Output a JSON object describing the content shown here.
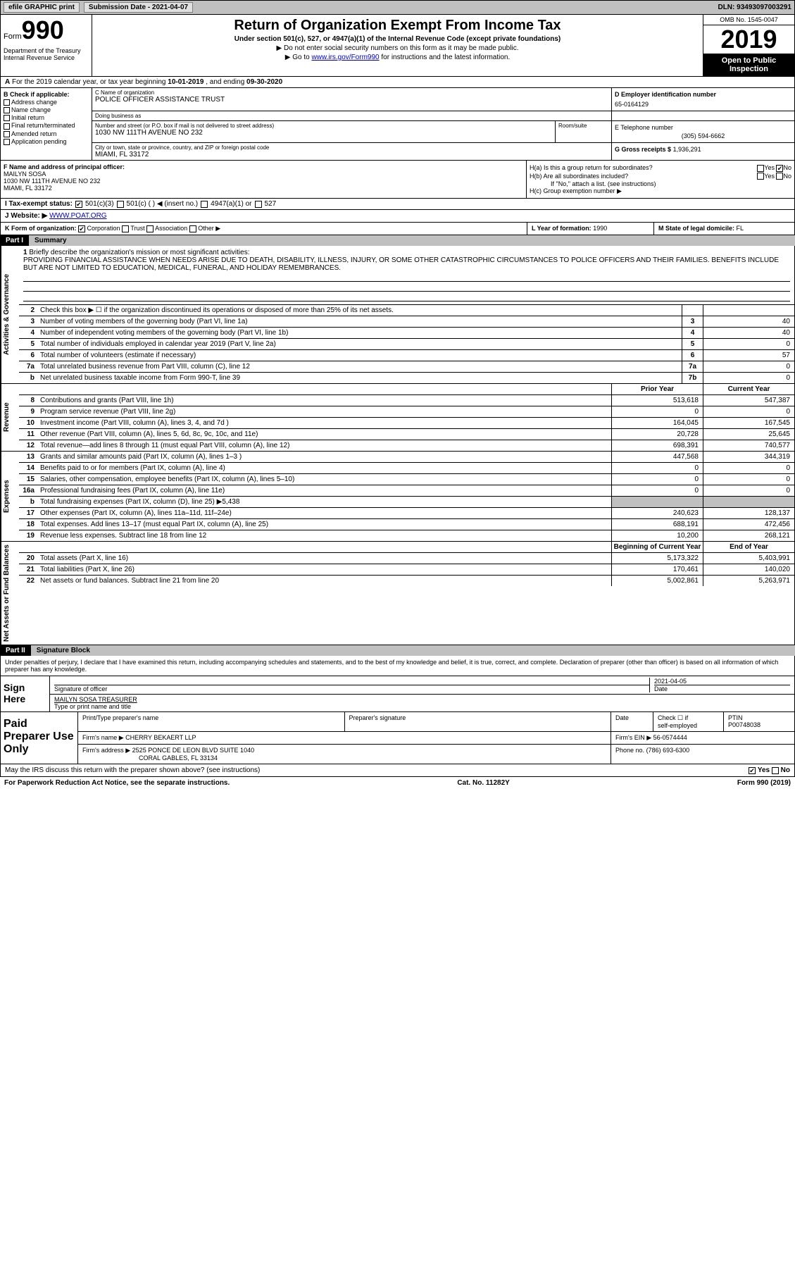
{
  "topbar": {
    "efile": "efile GRAPHIC print",
    "sub_label": "Submission Date - 2021-04-07",
    "dln": "DLN: 93493097003291"
  },
  "header": {
    "form_word": "Form",
    "form_num": "990",
    "dept": "Department of the Treasury\nInternal Revenue Service",
    "title": "Return of Organization Exempt From Income Tax",
    "subtitle": "Under section 501(c), 527, or 4947(a)(1) of the Internal Revenue Code (except private foundations)",
    "note1": "▶ Do not enter social security numbers on this form as it may be made public.",
    "note2_pre": "▶ Go to ",
    "note2_link": "www.irs.gov/Form990",
    "note2_post": " for instructions and the latest information.",
    "omb": "OMB No. 1545-0047",
    "year": "2019",
    "inspect": "Open to Public Inspection"
  },
  "line_a": {
    "prefix": "A",
    "text": "For the 2019 calendar year, or tax year beginning ",
    "begin": "10-01-2019",
    "mid": " , and ending ",
    "end": "09-30-2020"
  },
  "col_b": {
    "label": "B Check if applicable:",
    "items": [
      "Address change",
      "Name change",
      "Initial return",
      "Final return/terminated",
      "Amended return",
      "Application pending"
    ]
  },
  "block_c": {
    "name_lbl": "C Name of organization",
    "name": "POLICE OFFICER ASSISTANCE TRUST",
    "dba_lbl": "Doing business as",
    "dba": "",
    "addr_lbl": "Number and street (or P.O. box if mail is not delivered to street address)",
    "room_lbl": "Room/suite",
    "addr": "1030 NW 111TH AVENUE NO 232",
    "city_lbl": "City or town, state or province, country, and ZIP or foreign postal code",
    "city": "MIAMI, FL  33172"
  },
  "block_d": {
    "ein_lbl": "D Employer identification number",
    "ein": "65-0164129",
    "phone_lbl": "E Telephone number",
    "phone": "(305) 594-6662",
    "gross_lbl": "G Gross receipts $",
    "gross": "1,936,291"
  },
  "block_f": {
    "lbl": "F Name and address of principal officer:",
    "name": "MAILYN SOSA",
    "addr1": "1030 NW 111TH AVENUE NO 232",
    "addr2": "MIAMI, FL  33172"
  },
  "block_h": {
    "ha": "H(a)  Is this a group return for subordinates?",
    "hb": "H(b)  Are all subordinates included?",
    "hb_note": "If \"No,\" attach a list. (see instructions)",
    "hc": "H(c)  Group exemption number ▶"
  },
  "line_i": {
    "label": "I  Tax-exempt status:",
    "o1": "501(c)(3)",
    "o2": "501(c) (  ) ◀ (insert no.)",
    "o3": "4947(a)(1) or",
    "o4": "527"
  },
  "line_j": {
    "label": "J  Website: ▶",
    "val": "WWW.POAT.ORG"
  },
  "line_k": {
    "label": "K Form of organization:",
    "o1": "Corporation",
    "o2": "Trust",
    "o3": "Association",
    "o4": "Other ▶"
  },
  "line_l": {
    "label": "L Year of formation:",
    "val": "1990"
  },
  "line_m": {
    "label": "M State of legal domicile:",
    "val": "FL"
  },
  "part1": {
    "num": "Part I",
    "title": "Summary"
  },
  "mission": {
    "num": "1",
    "lbl": "Briefly describe the organization's mission or most significant activities:",
    "text": "PROVIDING FINANCIAL ASSISTANCE WHEN NEEDS ARISE DUE TO DEATH, DISABILITY, ILLNESS, INJURY, OR SOME OTHER CATASTROPHIC CIRCUMSTANCES TO POLICE OFFICERS AND THEIR FAMILIES. BENEFITS INCLUDE BUT ARE NOT LIMITED TO EDUCATION, MEDICAL, FUNERAL, AND HOLIDAY REMEMBRANCES."
  },
  "gov_rows": [
    {
      "n": "2",
      "d": "Check this box ▶ ☐  if the organization discontinued its operations or disposed of more than 25% of its net assets.",
      "b": "",
      "v": ""
    },
    {
      "n": "3",
      "d": "Number of voting members of the governing body (Part VI, line 1a)",
      "b": "3",
      "v": "40"
    },
    {
      "n": "4",
      "d": "Number of independent voting members of the governing body (Part VI, line 1b)",
      "b": "4",
      "v": "40"
    },
    {
      "n": "5",
      "d": "Total number of individuals employed in calendar year 2019 (Part V, line 2a)",
      "b": "5",
      "v": "0"
    },
    {
      "n": "6",
      "d": "Total number of volunteers (estimate if necessary)",
      "b": "6",
      "v": "57"
    },
    {
      "n": "7a",
      "d": "Total unrelated business revenue from Part VIII, column (C), line 12",
      "b": "7a",
      "v": "0"
    },
    {
      "n": "b",
      "d": "Net unrelated business taxable income from Form 990-T, line 39",
      "b": "7b",
      "v": "0"
    }
  ],
  "py_cy_hdr": {
    "py": "Prior Year",
    "cy": "Current Year"
  },
  "rev_rows": [
    {
      "n": "8",
      "d": "Contributions and grants (Part VIII, line 1h)",
      "py": "513,618",
      "cy": "547,387"
    },
    {
      "n": "9",
      "d": "Program service revenue (Part VIII, line 2g)",
      "py": "0",
      "cy": "0"
    },
    {
      "n": "10",
      "d": "Investment income (Part VIII, column (A), lines 3, 4, and 7d )",
      "py": "164,045",
      "cy": "167,545"
    },
    {
      "n": "11",
      "d": "Other revenue (Part VIII, column (A), lines 5, 6d, 8c, 9c, 10c, and 11e)",
      "py": "20,728",
      "cy": "25,645"
    },
    {
      "n": "12",
      "d": "Total revenue—add lines 8 through 11 (must equal Part VIII, column (A), line 12)",
      "py": "698,391",
      "cy": "740,577"
    }
  ],
  "exp_rows": [
    {
      "n": "13",
      "d": "Grants and similar amounts paid (Part IX, column (A), lines 1–3 )",
      "py": "447,568",
      "cy": "344,319"
    },
    {
      "n": "14",
      "d": "Benefits paid to or for members (Part IX, column (A), line 4)",
      "py": "0",
      "cy": "0"
    },
    {
      "n": "15",
      "d": "Salaries, other compensation, employee benefits (Part IX, column (A), lines 5–10)",
      "py": "0",
      "cy": "0"
    },
    {
      "n": "16a",
      "d": "Professional fundraising fees (Part IX, column (A), line 11e)",
      "py": "0",
      "cy": "0"
    },
    {
      "n": "b",
      "d": "Total fundraising expenses (Part IX, column (D), line 25) ▶5,438",
      "py": "",
      "cy": ""
    },
    {
      "n": "17",
      "d": "Other expenses (Part IX, column (A), lines 11a–11d, 11f–24e)",
      "py": "240,623",
      "cy": "128,137"
    },
    {
      "n": "18",
      "d": "Total expenses. Add lines 13–17 (must equal Part IX, column (A), line 25)",
      "py": "688,191",
      "cy": "472,456"
    },
    {
      "n": "19",
      "d": "Revenue less expenses. Subtract line 18 from line 12",
      "py": "10,200",
      "cy": "268,121"
    }
  ],
  "na_hdr": {
    "py": "Beginning of Current Year",
    "cy": "End of Year"
  },
  "na_rows": [
    {
      "n": "20",
      "d": "Total assets (Part X, line 16)",
      "py": "5,173,322",
      "cy": "5,403,991"
    },
    {
      "n": "21",
      "d": "Total liabilities (Part X, line 26)",
      "py": "170,461",
      "cy": "140,020"
    },
    {
      "n": "22",
      "d": "Net assets or fund balances. Subtract line 21 from line 20",
      "py": "5,002,861",
      "cy": "5,263,971"
    }
  ],
  "part2": {
    "num": "Part II",
    "title": "Signature Block"
  },
  "sig": {
    "intro": "Under penalties of perjury, I declare that I have examined this return, including accompanying schedules and statements, and to the best of my knowledge and belief, it is true, correct, and complete. Declaration of preparer (other than officer) is based on all information of which preparer has any knowledge.",
    "sign_here": "Sign Here",
    "sig_lbl": "Signature of officer",
    "date_lbl": "Date",
    "date_val": "2021-04-05",
    "name_val": "MAILYN SOSA  TREASURER",
    "name_lbl": "Type or print name and title"
  },
  "prep": {
    "title": "Paid Preparer Use Only",
    "h1": "Print/Type preparer's name",
    "h2": "Preparer's signature",
    "h3": "Date",
    "h4_a": "Check ☐ if",
    "h4_b": "self-employed",
    "h5": "PTIN",
    "ptin": "P00748038",
    "firm_lbl": "Firm's name   ▶",
    "firm": "CHERRY BEKAERT LLP",
    "ein_lbl": "Firm's EIN ▶",
    "ein": "56-0574444",
    "addr_lbl": "Firm's address ▶",
    "addr1": "2525 PONCE DE LEON BLVD SUITE 1040",
    "addr2": "CORAL GABLES, FL  33134",
    "phone_lbl": "Phone no.",
    "phone": "(786) 693-6300"
  },
  "discuss": {
    "q": "May the IRS discuss this return with the preparer shown above? (see instructions)",
    "yes": "Yes",
    "no": "No"
  },
  "footer": {
    "pra": "For Paperwork Reduction Act Notice, see the separate instructions.",
    "cat": "Cat. No. 11282Y",
    "form": "Form 990 (2019)"
  },
  "vlabels": {
    "gov": "Activities & Governance",
    "rev": "Revenue",
    "exp": "Expenses",
    "na": "Net Assets or Fund Balances"
  }
}
